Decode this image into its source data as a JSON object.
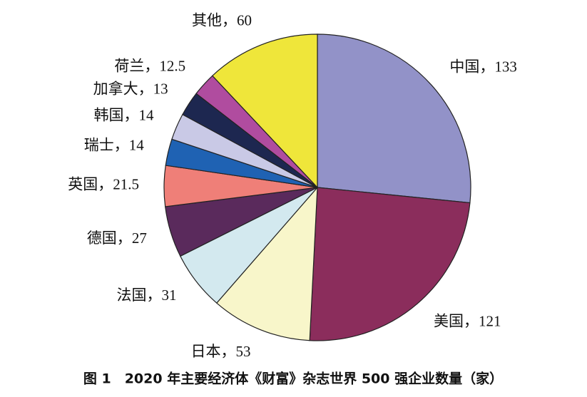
{
  "chart_data": {
    "type": "pie",
    "title": "图 1　2020 年主要经济体《财富》杂志世界 500 强企业数量（家）",
    "categories": [
      "中国，",
      "美国，",
      "日本，",
      "法国，",
      "德国，",
      "英国，",
      "瑞士，",
      "韩国，",
      "加拿大，",
      "荷兰，",
      "其他，"
    ],
    "values": [
      133,
      121,
      53,
      31,
      27,
      21.5,
      14,
      14,
      13,
      12.5,
      60
    ],
    "colors": [
      "#9292c8",
      "#8b2d5c",
      "#f8f6ca",
      "#d3e9ef",
      "#5a2a5c",
      "#ef7f78",
      "#1f62b3",
      "#c9c9e6",
      "#1d2750",
      "#b04c9f",
      "#efe63a"
    ]
  }
}
